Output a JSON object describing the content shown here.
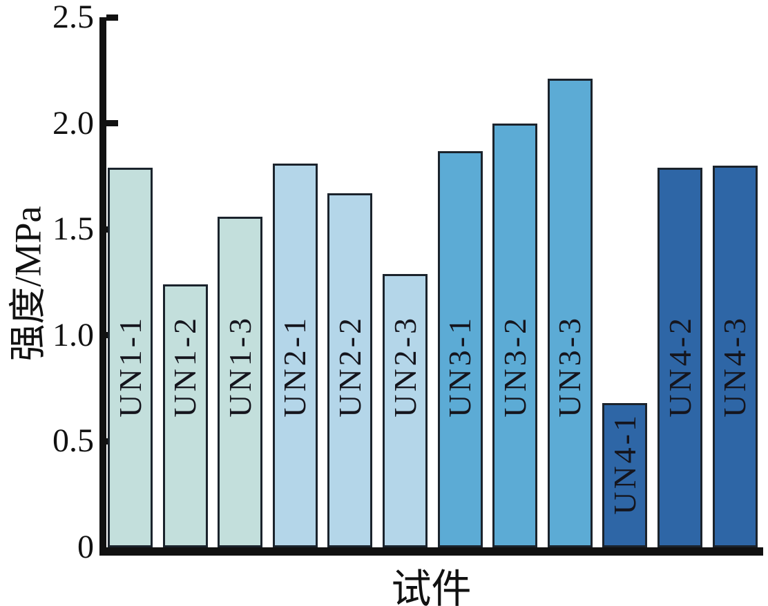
{
  "chart_data": {
    "type": "bar",
    "title": "",
    "xlabel": "试件",
    "ylabel": "强度/MPa",
    "categories": [
      "UN1-1",
      "UN1-2",
      "UN1-3",
      "UN2-1",
      "UN2-2",
      "UN2-3",
      "UN3-1",
      "UN3-2",
      "UN3-3",
      "UN4-1",
      "UN4-2",
      "UN4-3"
    ],
    "values": [
      1.79,
      1.24,
      1.56,
      1.81,
      1.67,
      1.29,
      1.87,
      2.0,
      2.21,
      0.68,
      1.79,
      1.8
    ],
    "bar_colors": [
      "#c3dfdc",
      "#c3dfdc",
      "#c3dfdc",
      "#b4d6e9",
      "#b4d6e9",
      "#b4d6e9",
      "#5cabd5",
      "#5cabd5",
      "#5cabd5",
      "#2e66a6",
      "#2e66a6",
      "#2e66a6"
    ],
    "bar_label_position": "inside-vertical",
    "ylim": [
      0,
      2.5
    ],
    "yticks": [
      0,
      0.5,
      1.0,
      1.5,
      2.0,
      2.5
    ],
    "ytick_labels": [
      "0",
      "0.5",
      "1.0",
      "1.5",
      "2.0",
      "2.5"
    ],
    "grid": false,
    "legend": "none"
  },
  "colors": {
    "background": "#ffffff",
    "axis": "#111111",
    "bar_border": "#1b232c",
    "bar_label_text": "#15151d"
  }
}
